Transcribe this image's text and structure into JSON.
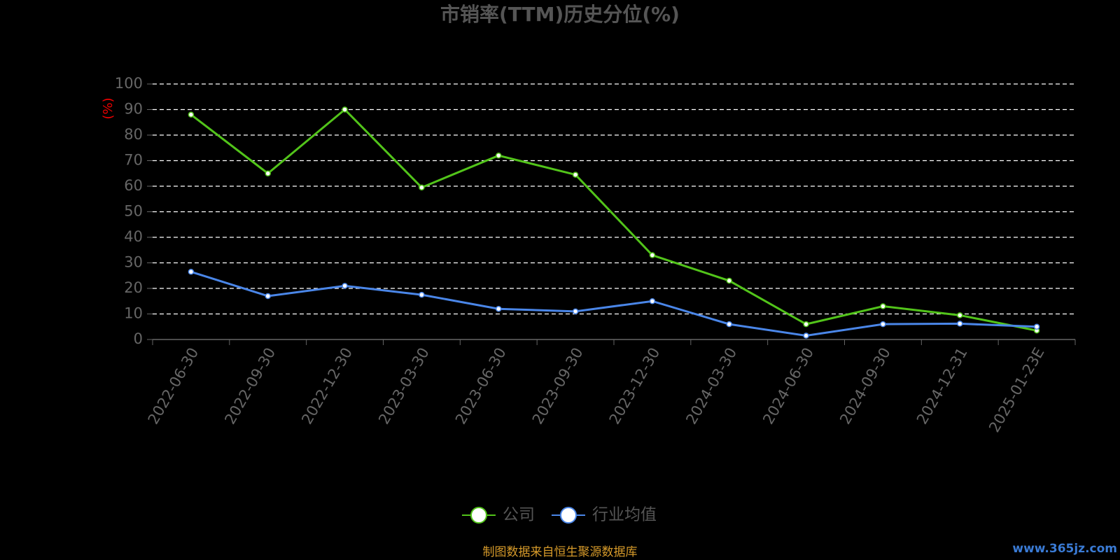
{
  "chart_data": {
    "type": "line",
    "title": "市销率(TTM)历史分位(%)",
    "y_label": "(%)",
    "categories": [
      "2022-06-30",
      "2022-09-30",
      "2022-12-30",
      "2023-03-30",
      "2023-06-30",
      "2023-09-30",
      "2023-12-30",
      "2024-03-30",
      "2024-06-30",
      "2024-09-30",
      "2024-12-31",
      "2025-01-23E"
    ],
    "series": [
      {
        "name": "公司",
        "color": "#52c41a",
        "values": [
          88,
          65,
          90,
          59.5,
          72,
          64.5,
          33,
          23,
          6,
          13,
          9.5,
          3.5
        ]
      },
      {
        "name": "行业均值",
        "color": "#4a86e8",
        "values": [
          26.5,
          17,
          21,
          17.5,
          12,
          11,
          15,
          6,
          1.5,
          6,
          6.2,
          5
        ]
      }
    ],
    "ylim": [
      0,
      100
    ],
    "yticks": [
      0,
      10,
      20,
      30,
      40,
      50,
      60,
      70,
      80,
      90,
      100
    ],
    "grid": true,
    "legend": "bottom",
    "source": "制图数据来自恒生聚源数据库",
    "watermark": "www.365jz.com"
  }
}
